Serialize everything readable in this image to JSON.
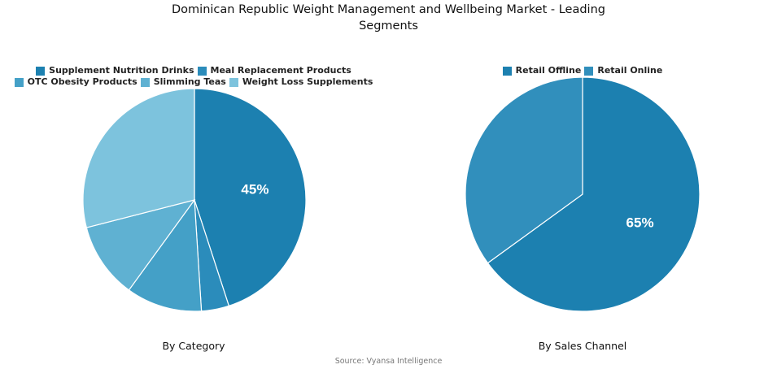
{
  "title_line1": "Dominican Republic Weight Management and Wellbeing Market - Leading",
  "title_line2": "Segments",
  "source": "Source: Vyansa Intelligence",
  "chart_data": [
    {
      "type": "pie",
      "caption": "By Category",
      "series": [
        {
          "name": "Supplement Nutrition Drinks",
          "value": 45,
          "color": "#1c80b0",
          "label": "45%"
        },
        {
          "name": "Meal Replacement Products",
          "value": 4,
          "color": "#2b8cbb",
          "label": ""
        },
        {
          "name": "OTC Obesity Products",
          "value": 11,
          "color": "#44a0c7",
          "label": ""
        },
        {
          "name": "Slimming Teas",
          "value": 11,
          "color": "#5fb1d2",
          "label": ""
        },
        {
          "name": "Weight Loss Supplements",
          "value": 29,
          "color": "#7dc3dd",
          "label": ""
        }
      ]
    },
    {
      "type": "pie",
      "caption": "By Sales Channel",
      "series": [
        {
          "name": "Retail Offline",
          "value": 65,
          "color": "#1c80b0",
          "label": "65%"
        },
        {
          "name": "Retail Online",
          "value": 35,
          "color": "#318fbc",
          "label": ""
        }
      ]
    }
  ]
}
